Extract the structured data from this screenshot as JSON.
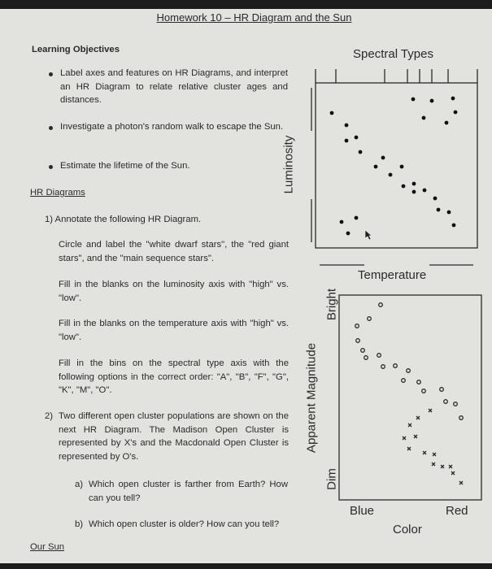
{
  "title": "Homework 10 – HR Diagram and the Sun",
  "learning_objectives": {
    "heading": "Learning Objectives",
    "items": [
      "Label axes and features on HR Diagrams, and interpret an HR Diagram to relate relative cluster ages and distances.",
      "Investigate a photon's random walk to escape the Sun.",
      "Estimate the lifetime of the Sun."
    ]
  },
  "hr_section": {
    "heading": "HR Diagrams",
    "q1": "1) Annotate the following HR Diagram.",
    "q1_parts": [
      "Circle and label the \"white dwarf stars\", the \"red giant stars\", and the \"main sequence stars\".",
      "Fill in the blanks on the luminosity axis with \"high\" vs. \"low\".",
      "Fill in the blanks on the temperature axis with \"high\" vs. \"low\".",
      "Fill in the bins on the spectral type axis with the following options in the correct order: \"A\", \"B\", \"F\", \"G\", \"K\", \"M\", \"O\"."
    ],
    "q2_num": "2)",
    "q2": "Two different open cluster populations are shown on the next HR Diagram. The Madison Open Cluster is represented by X's and the Macdonald Open Cluster is represented by O's.",
    "q2a_label": "a)",
    "q2a": "Which open cluster is farther from Earth? How can you tell?",
    "q2b_label": "b)",
    "q2b": "Which open cluster is older? How can you tell?",
    "next_heading": "Our Sun"
  },
  "diagram1": {
    "top_label": "Spectral Types",
    "y_label": "Luminosity",
    "x_label": "Temperature"
  },
  "diagram2": {
    "y_label": "Apparent Magnitude",
    "y_top": "Bright",
    "y_bottom": "Dim",
    "x_left": "Blue",
    "x_right": "Red",
    "x_label": "Color",
    "marker_x": "x",
    "marker_o": "o"
  }
}
